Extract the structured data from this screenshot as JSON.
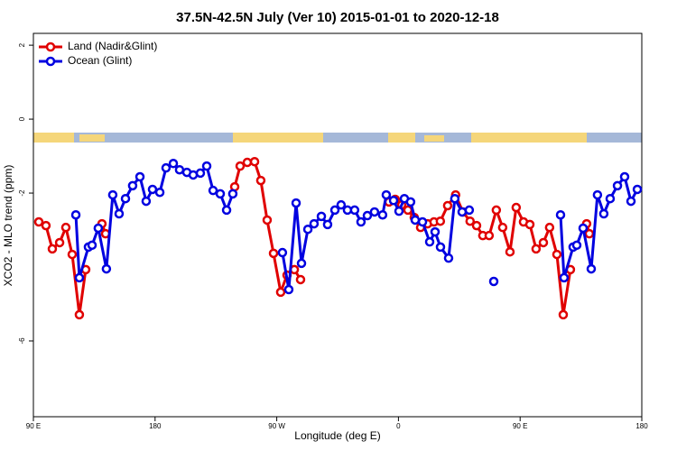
{
  "chart_data": {
    "type": "line",
    "title": "37.5N-42.5N July (Ver 10)   2015-01-01 to 2020-12-18",
    "xlabel": "Longitude (deg E)",
    "ylabel": "XCO2 - MLO trend (ppm)",
    "xlim": [
      90,
      540
    ],
    "xticks": [
      {
        "value": 90,
        "label": "90 E"
      },
      180,
      {
        "value": 270,
        "label": "90 W"
      },
      {
        "value": 360,
        "label": "0"
      },
      {
        "value": 450,
        "label": "90 E"
      },
      {
        "value": 540,
        "label": "180"
      }
    ],
    "ylim": [
      -8.05,
      2.32
    ],
    "yticks": [
      2,
      0,
      -2,
      -6
    ],
    "legend": "top-left",
    "series": [
      {
        "name": "Land (Nadir&Glint)",
        "color": "#e00000",
        "x": [
          94,
          99.3,
          104,
          109.4,
          114,
          118.7,
          124,
          128.7,
          null,
          140.7,
          143.4,
          null,
          238.9,
          242.9,
          248.2,
          253.6,
          258.2,
          262.9,
          267.6,
          272.9,
          277.6,
          283,
          287.6,
          null,
          353,
          357.6,
          362.4,
          367,
          371.7,
          376.4,
          381.6,
          386.3,
          391,
          396.4,
          402.3,
          407.7,
          413,
          417.8,
          422.4,
          427.1,
          432.4,
          437.1,
          442.5,
          447.1,
          452.5,
          457.2,
          461.8,
          467.2,
          471.8,
          477.2,
          481.9,
          487.2,
          null,
          499.2,
          501.2
        ],
        "values": [
          -2.78,
          -2.88,
          -3.51,
          -3.34,
          -2.93,
          -3.66,
          -5.29,
          -4.07,
          null,
          -2.83,
          -3.1,
          null,
          -1.83,
          -1.27,
          -1.17,
          -1.15,
          -1.66,
          -2.73,
          -3.63,
          -4.68,
          -4.22,
          -4.07,
          -4.34,
          null,
          -2.24,
          -2.17,
          -2.32,
          -2.46,
          -2.66,
          -2.93,
          -2.83,
          -2.78,
          -2.76,
          -2.34,
          -2.05,
          -2.51,
          -2.76,
          -2.88,
          -3.15,
          -3.15,
          -2.46,
          -2.93,
          -3.59,
          -2.39,
          -2.78,
          -2.85,
          -3.51,
          -3.34,
          -2.93,
          -3.66,
          -5.29,
          -4.07,
          null,
          -2.83,
          -3.1
        ]
      },
      {
        "name": "Ocean (Glint)",
        "color": "#0000e0",
        "x": [
          121.4,
          124,
          130.7,
          133.4,
          138,
          144,
          148.7,
          153.4,
          158.1,
          163.4,
          168.8,
          173.4,
          178.1,
          183.5,
          188.1,
          193.5,
          198.1,
          203.5,
          208.2,
          213.5,
          218.2,
          222.9,
          228.2,
          232.9,
          237.5,
          null,
          274.2,
          278.9,
          284.3,
          288.3,
          293,
          297.6,
          303,
          307.6,
          313,
          317.6,
          322.3,
          327.6,
          332.3,
          337,
          342.3,
          348.3,
          351,
          356.4,
          360.4,
          364.4,
          369,
          372.4,
          377.8,
          383.1,
          387.1,
          391.1,
          397.1,
          401.7,
          407.1,
          412.4,
          null,
          430.5,
          null,
          479.9,
          482.5,
          489.2,
          491.9,
          496.6,
          502.6,
          507.2,
          511.9,
          516.6,
          522,
          527.3,
          532,
          536.7
        ],
        "values": [
          -2.59,
          -4.29,
          -3.46,
          -3.41,
          -2.95,
          -4.05,
          -2.05,
          -2.56,
          -2.15,
          -1.8,
          -1.56,
          -2.22,
          -1.9,
          -1.98,
          -1.32,
          -1.2,
          -1.37,
          -1.44,
          -1.51,
          -1.46,
          -1.27,
          -1.93,
          -2.02,
          -2.46,
          -2.02,
          null,
          -3.61,
          -4.61,
          -2.27,
          -3.9,
          -2.98,
          -2.83,
          -2.63,
          -2.85,
          -2.46,
          -2.32,
          -2.46,
          -2.46,
          -2.78,
          -2.61,
          -2.51,
          -2.59,
          -2.05,
          -2.2,
          -2.49,
          -2.15,
          -2.24,
          -2.73,
          -2.78,
          -3.32,
          -3.05,
          -3.46,
          -3.76,
          -2.15,
          -2.51,
          -2.46,
          null,
          -4.39,
          null,
          -2.59,
          -4.29,
          -3.46,
          -3.41,
          -2.95,
          -4.05,
          -2.05,
          -2.56,
          -2.15,
          -1.8,
          -1.56,
          -2.22,
          -1.9
        ]
      }
    ]
  }
}
